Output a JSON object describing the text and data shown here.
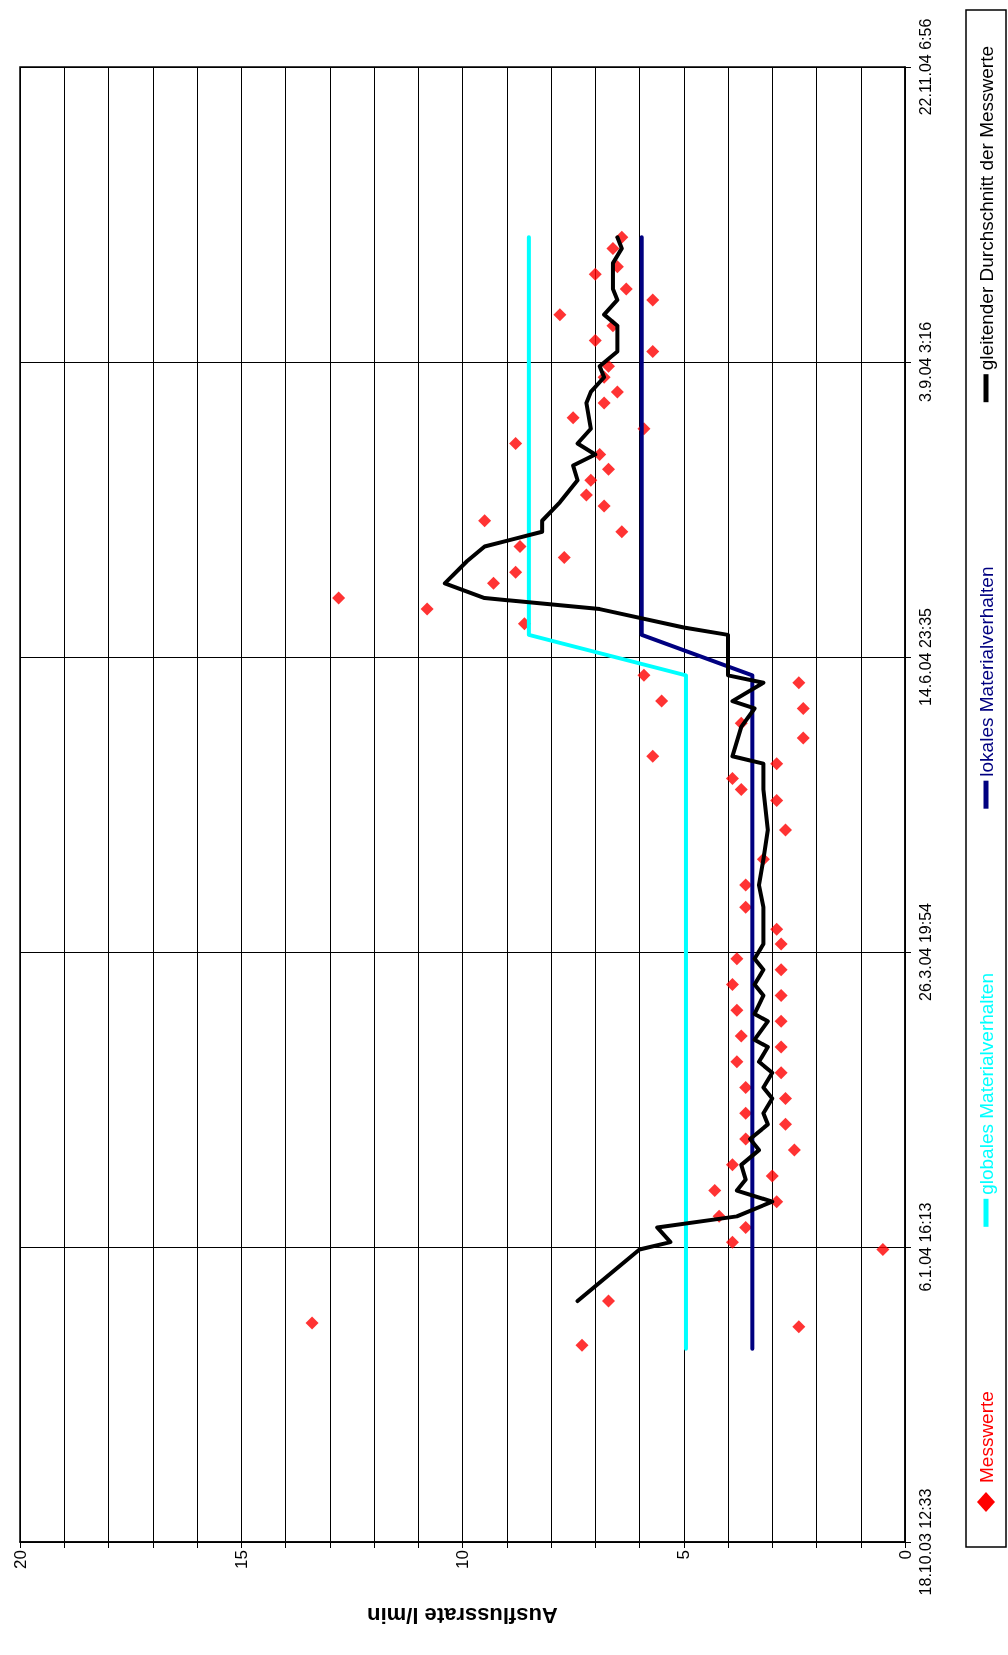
{
  "chart_data": {
    "type": "line",
    "orientation": "horizontal",
    "xlabel": "Ausflussrate l/min",
    "ylim": [
      "2003-10-18T12:33",
      "2004-11-22T06:56"
    ],
    "yticks": [
      {
        "value": "2003-10-18T12:33",
        "label": "18.10.03 12:33"
      },
      {
        "value": "2004-01-06T16:13",
        "label": "6.1.04 16:13"
      },
      {
        "value": "2004-03-26T19:54",
        "label": "26.3.04 19:54"
      },
      {
        "value": "2004-06-14T23:35",
        "label": "14.6.04 23:35"
      },
      {
        "value": "2004-09-03T03:16",
        "label": "3.9.04 3:16"
      },
      {
        "value": "2004-11-22T06:56",
        "label": "22.11.04 6:56"
      }
    ],
    "xlim": [
      20,
      0
    ],
    "xticks": [
      0,
      {
        "value": 1,
        "label": null
      },
      {
        "value": 2,
        "label": null
      },
      {
        "value": 3,
        "label": null
      },
      {
        "value": 4,
        "label": null
      },
      5,
      {
        "value": 6,
        "label": null
      },
      {
        "value": 7,
        "label": null
      },
      {
        "value": 8,
        "label": null
      },
      {
        "value": 9,
        "label": null
      },
      10,
      {
        "value": 11,
        "label": null
      },
      {
        "value": 12,
        "label": null
      },
      {
        "value": 13,
        "label": null
      },
      {
        "value": 14,
        "label": null
      },
      15,
      {
        "value": 16,
        "label": null
      },
      {
        "value": 17,
        "label": null
      },
      {
        "value": 18,
        "label": null
      },
      {
        "value": 19,
        "label": null
      },
      20
    ],
    "grid": true,
    "legend": "right",
    "series": [
      {
        "name": "Messwerte",
        "type": "scatter",
        "marker": "diamond",
        "color": "#ff0000",
        "x": [
          "2003-12-11",
          "2003-12-16",
          "2003-12-17",
          "2003-12-23",
          "2004-01-06",
          "2004-01-08",
          "2004-01-12",
          "2004-01-15",
          "2004-01-19",
          "2004-01-22",
          "2004-01-26",
          "2004-01-29",
          "2004-02-02",
          "2004-02-05",
          "2004-02-09",
          "2004-02-12",
          "2004-02-16",
          "2004-02-19",
          "2004-02-23",
          "2004-02-26",
          "2004-03-01",
          "2004-03-04",
          "2004-03-08",
          "2004-03-11",
          "2004-03-15",
          "2004-03-18",
          "2004-03-22",
          "2004-03-25",
          "2004-03-29",
          "2004-04-02",
          "2004-04-08",
          "2004-04-14",
          "2004-04-21",
          "2004-04-29",
          "2004-05-07",
          "2004-05-10",
          "2004-05-13",
          "2004-05-17",
          "2004-05-19",
          "2004-05-24",
          "2004-05-28",
          "2004-06-01",
          "2004-06-03",
          "2004-06-08",
          "2004-06-10",
          "2004-06-24",
          "2004-06-28",
          "2004-07-01",
          "2004-07-05",
          "2004-07-08",
          "2004-07-12",
          "2004-07-15",
          "2004-07-19",
          "2004-07-22",
          "2004-07-26",
          "2004-07-29",
          "2004-08-02",
          "2004-08-05",
          "2004-08-09",
          "2004-08-12",
          "2004-08-16",
          "2004-08-19",
          "2004-08-23",
          "2004-08-26",
          "2004-08-30",
          "2004-09-02",
          "2004-09-06",
          "2004-09-09",
          "2004-09-13",
          "2004-09-16",
          "2004-09-20",
          "2004-09-23",
          "2004-09-27",
          "2004-09-29",
          "2004-10-04",
          "2004-10-07"
        ],
        "values": [
          7.3,
          2.4,
          13.4,
          6.7,
          0.5,
          3.9,
          3.6,
          4.2,
          2.9,
          4.3,
          3.0,
          3.9,
          2.5,
          3.6,
          2.7,
          3.6,
          2.7,
          3.6,
          2.8,
          3.8,
          2.8,
          3.7,
          2.8,
          3.8,
          2.8,
          3.9,
          2.8,
          3.8,
          2.8,
          2.9,
          3.6,
          3.6,
          3.2,
          2.7,
          2.9,
          3.7,
          3.9,
          2.9,
          5.7,
          2.3,
          3.7,
          2.3,
          5.5,
          2.4,
          5.9,
          8.6,
          10.8,
          12.8,
          9.3,
          8.8,
          7.7,
          8.7,
          6.4,
          9.5,
          6.8,
          7.2,
          7.1,
          6.7,
          6.9,
          8.8,
          5.9,
          7.5,
          6.8,
          6.5,
          6.8,
          6.7,
          5.7,
          7.0,
          6.6,
          7.8,
          5.7,
          6.3,
          7.0,
          6.5,
          6.6,
          6.4
        ]
      },
      {
        "name": "globales Materialverhalten",
        "color": "#00ffff",
        "x": [
          "2003-12-10",
          "2004-06-10",
          "2004-06-21",
          "2004-10-07"
        ],
        "values": [
          4.95,
          4.95,
          8.5,
          8.5
        ]
      },
      {
        "name": "lokales Materialverhalten",
        "color": "#000080",
        "x": [
          "2003-12-10",
          "2004-06-10",
          "2004-06-21",
          "2004-10-07"
        ],
        "values": [
          3.45,
          3.45,
          5.95,
          5.95
        ]
      },
      {
        "name": "gleitender Durchschnitt der Messwerte",
        "color": "#000000",
        "x": [
          "2003-12-23",
          "2004-01-06",
          "2004-01-08",
          "2004-01-12",
          "2004-01-15",
          "2004-01-19",
          "2004-01-22",
          "2004-01-25",
          "2004-01-29",
          "2004-02-02",
          "2004-02-05",
          "2004-02-09",
          "2004-02-12",
          "2004-02-16",
          "2004-02-19",
          "2004-02-23",
          "2004-02-26",
          "2004-03-01",
          "2004-03-03",
          "2004-03-08",
          "2004-03-10",
          "2004-03-15",
          "2004-03-18",
          "2004-03-22",
          "2004-03-25",
          "2004-03-29",
          "2004-04-08",
          "2004-04-14",
          "2004-04-21",
          "2004-04-29",
          "2004-05-10",
          "2004-05-17",
          "2004-05-19",
          "2004-05-27",
          "2004-06-01",
          "2004-06-03",
          "2004-06-08",
          "2004-06-10",
          "2004-06-21",
          "2004-06-23",
          "2004-06-28",
          "2004-07-01",
          "2004-07-05",
          "2004-07-11",
          "2004-07-15",
          "2004-07-19",
          "2004-07-22",
          "2004-07-27",
          "2004-08-02",
          "2004-08-06",
          "2004-08-09",
          "2004-08-12",
          "2004-08-16",
          "2004-08-23",
          "2004-08-26",
          "2004-08-30",
          "2004-09-02",
          "2004-09-06",
          "2004-09-13",
          "2004-09-16",
          "2004-09-20",
          "2004-09-23",
          "2004-09-30",
          "2004-10-04",
          "2004-10-07"
        ],
        "values": [
          7.4,
          6.0,
          5.3,
          5.6,
          3.8,
          3.0,
          3.8,
          3.6,
          3.7,
          3.3,
          3.5,
          3.1,
          3.2,
          3.0,
          3.2,
          3.0,
          3.3,
          3.1,
          3.4,
          3.1,
          3.4,
          3.2,
          3.4,
          3.2,
          3.4,
          3.2,
          3.2,
          3.3,
          3.2,
          3.1,
          3.2,
          3.2,
          3.9,
          3.7,
          3.4,
          3.9,
          3.2,
          4.0,
          4.0,
          5.0,
          6.9,
          9.5,
          10.4,
          9.9,
          9.5,
          8.2,
          8.2,
          7.8,
          7.4,
          7.5,
          7.0,
          7.4,
          7.1,
          7.2,
          7.1,
          6.8,
          6.9,
          6.5,
          6.5,
          6.8,
          6.5,
          6.6,
          6.6,
          6.4,
          6.5
        ]
      }
    ]
  }
}
